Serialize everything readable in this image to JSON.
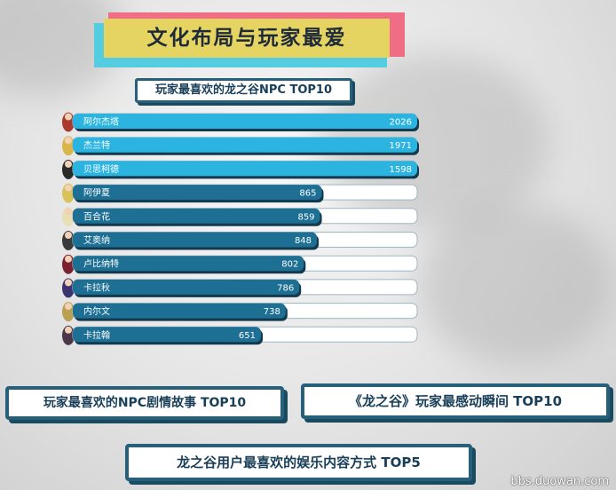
{
  "header": {
    "title": "文化布局与玩家最爱"
  },
  "chart_data": {
    "type": "bar",
    "orientation": "horizontal",
    "title": "玩家最喜欢的龙之谷NPC TOP10",
    "categories": [
      "阿尔杰塔",
      "杰兰特",
      "贝思柯德",
      "阿伊夏",
      "百合花",
      "艾奥纳",
      "卢比纳特",
      "卡拉秋",
      "内尔文",
      "卡拉翰"
    ],
    "values": [
      2026,
      1971,
      1598,
      865,
      859,
      848,
      802,
      786,
      738,
      651
    ],
    "xlim": [
      0,
      2200
    ],
    "grid": false,
    "colors": {
      "highlight": "#2cb4e0",
      "normal": "#1d6f94",
      "track": "#ffffff"
    },
    "highlight_count": 3
  },
  "sections": [
    {
      "label": "玩家最喜欢的NPC剧情故事 TOP10"
    },
    {
      "label": "《龙之谷》玩家最感动瞬间 TOP10"
    },
    {
      "label": "龙之谷用户最喜欢的娱乐内容方式 TOP5"
    }
  ],
  "watermark": "bbs.duowan.com"
}
